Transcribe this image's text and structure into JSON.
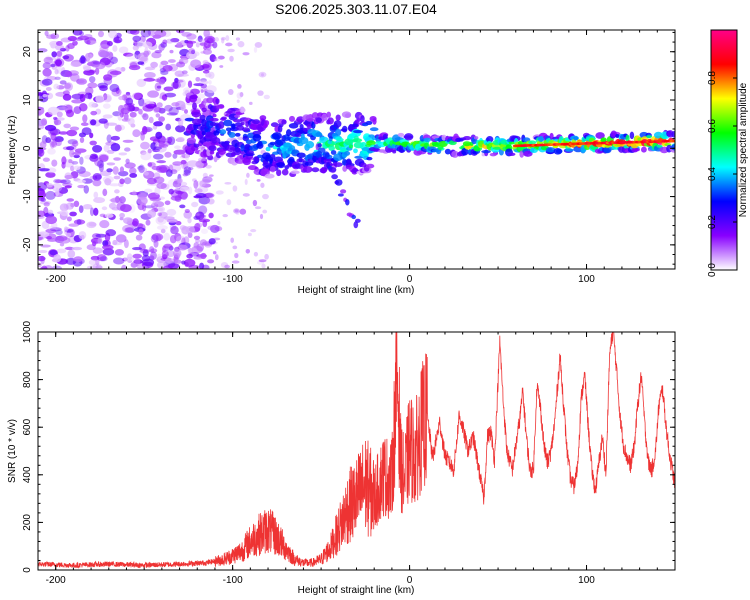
{
  "title": "S206.2025.303.11.07.E04",
  "chart_data": [
    {
      "type": "heatmap",
      "xlabel": "Height of straight line (km)",
      "ylabel": "Frequency (Hz)",
      "xlim": [
        -210,
        150
      ],
      "ylim": [
        -25,
        24.5
      ],
      "xticks": [
        -200,
        -100,
        0,
        100
      ],
      "xtick_labels": [
        "-200",
        "-100",
        "0",
        "100"
      ],
      "yticks": [
        -20,
        -10,
        0,
        10,
        20
      ],
      "ytick_labels": [
        "-20",
        "-10",
        "0",
        "10",
        "20"
      ],
      "colorbar": {
        "label": "Normalized spectral amplitude",
        "range": [
          0,
          1
        ],
        "ticks": [
          0.0,
          0.2,
          0.4,
          0.6,
          0.8
        ],
        "tick_labels": [
          "0.0",
          "0.2",
          "0.4",
          "0.6",
          "0.8"
        ],
        "colors": [
          "#ffffff",
          "#8800ff",
          "#0000ff",
          "#00ffff",
          "#00ff00",
          "#ffff00",
          "#ff0000",
          "#ff0088"
        ]
      },
      "ridge": [
        {
          "x": -120,
          "y": 5
        },
        {
          "x": -100,
          "y": 3
        },
        {
          "x": -80,
          "y": 0
        },
        {
          "x": -50,
          "y": 1
        },
        {
          "x": -20,
          "y": 1
        },
        {
          "x": 0,
          "y": 1
        },
        {
          "x": 20,
          "y": 0.5
        },
        {
          "x": 60,
          "y": 0.5
        },
        {
          "x": 100,
          "y": 1
        },
        {
          "x": 150,
          "y": 1.5
        }
      ],
      "branch_ridge": [
        {
          "x": -50,
          "y": 0
        },
        {
          "x": -40,
          "y": -8
        },
        {
          "x": -30,
          "y": -16
        }
      ]
    },
    {
      "type": "line",
      "xlabel": "Height of straight line (km)",
      "ylabel": "SNR (10 * v/v)",
      "xlim": [
        -210,
        150
      ],
      "ylim": [
        0,
        1000
      ],
      "xticks": [
        -200,
        -100,
        0,
        100
      ],
      "xtick_labels": [
        "-200",
        "-100",
        "0",
        "100"
      ],
      "yticks": [
        0,
        200,
        400,
        600,
        800,
        1000
      ],
      "ytick_labels": [
        "0",
        "200",
        "400",
        "600",
        "800",
        "1000"
      ],
      "color": "#ee3333",
      "series": [
        {
          "name": "SNR",
          "points": [
            [
              -210,
              25
            ],
            [
              -190,
              20
            ],
            [
              -170,
              25
            ],
            [
              -150,
              20
            ],
            [
              -130,
              25
            ],
            [
              -115,
              30
            ],
            [
              -105,
              45
            ],
            [
              -100,
              60
            ],
            [
              -95,
              80
            ],
            [
              -90,
              120
            ],
            [
              -85,
              150
            ],
            [
              -80,
              170
            ],
            [
              -75,
              140
            ],
            [
              -70,
              90
            ],
            [
              -65,
              45
            ],
            [
              -60,
              30
            ],
            [
              -55,
              30
            ],
            [
              -50,
              45
            ],
            [
              -45,
              90
            ],
            [
              -40,
              170
            ],
            [
              -35,
              260
            ],
            [
              -30,
              300
            ],
            [
              -25,
              360
            ],
            [
              -20,
              300
            ],
            [
              -15,
              400
            ],
            [
              -10,
              380
            ],
            [
              -7,
              840
            ],
            [
              -5,
              450
            ],
            [
              -3,
              380
            ],
            [
              0,
              520
            ],
            [
              3,
              480
            ],
            [
              7,
              600
            ],
            [
              10,
              650
            ],
            [
              13,
              470
            ],
            [
              17,
              620
            ],
            [
              20,
              480
            ],
            [
              25,
              420
            ],
            [
              28,
              650
            ],
            [
              30,
              600
            ],
            [
              33,
              500
            ],
            [
              36,
              560
            ],
            [
              39,
              430
            ],
            [
              42,
              300
            ],
            [
              44,
              560
            ],
            [
              46,
              580
            ],
            [
              48,
              460
            ],
            [
              51,
              960
            ],
            [
              53,
              700
            ],
            [
              55,
              500
            ],
            [
              58,
              420
            ],
            [
              60,
              520
            ],
            [
              62,
              620
            ],
            [
              64,
              750
            ],
            [
              66,
              560
            ],
            [
              68,
              420
            ],
            [
              70,
              420
            ],
            [
              72,
              780
            ],
            [
              74,
              680
            ],
            [
              76,
              520
            ],
            [
              78,
              450
            ],
            [
              80,
              500
            ],
            [
              82,
              620
            ],
            [
              85,
              900
            ],
            [
              87,
              700
            ],
            [
              89,
              500
            ],
            [
              91,
              380
            ],
            [
              93,
              350
            ],
            [
              95,
              440
            ],
            [
              97,
              720
            ],
            [
              99,
              820
            ],
            [
              101,
              600
            ],
            [
              103,
              420
            ],
            [
              105,
              330
            ],
            [
              107,
              450
            ],
            [
              109,
              560
            ],
            [
              111,
              400
            ],
            [
              113,
              900
            ],
            [
              115,
              1010
            ],
            [
              117,
              840
            ],
            [
              119,
              640
            ],
            [
              121,
              520
            ],
            [
              123,
              470
            ],
            [
              125,
              440
            ],
            [
              127,
              520
            ],
            [
              129,
              700
            ],
            [
              131,
              820
            ],
            [
              133,
              600
            ],
            [
              135,
              450
            ],
            [
              137,
              420
            ],
            [
              139,
              500
            ],
            [
              141,
              700
            ],
            [
              143,
              760
            ],
            [
              145,
              600
            ],
            [
              147,
              480
            ],
            [
              150,
              360
            ]
          ]
        }
      ]
    }
  ]
}
